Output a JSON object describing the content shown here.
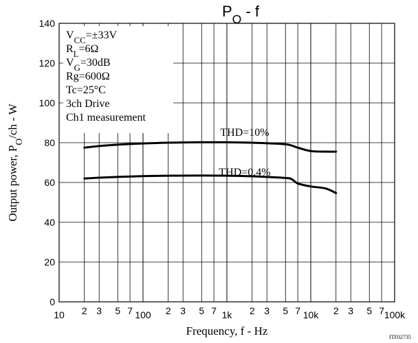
{
  "chart_data": {
    "type": "line",
    "title": "PO - f",
    "xlabel": "Frequency, f - Hz",
    "ylabel": "Output power, PO/ch - W",
    "x_scale": "log",
    "xlim": [
      10,
      100000
    ],
    "ylim": [
      0,
      140
    ],
    "y_ticks": [
      "0",
      "20",
      "40",
      "60",
      "80",
      "100",
      "120",
      "140"
    ],
    "x_tick_major_labels": [
      "10",
      "100",
      "1k",
      "10k",
      "100k"
    ],
    "x_tick_minor_labels": [
      "2",
      "3",
      "5",
      "7"
    ],
    "grid": true,
    "conditions": [
      "VCC=±33V",
      "RL=6Ω",
      "VG=30dB",
      "Rg=600Ω",
      "Tc=25°C",
      "3ch Drive",
      "Ch1 measurement"
    ],
    "series": [
      {
        "name": "THD=10%",
        "x": [
          20,
          30,
          50,
          100,
          200,
          500,
          1000,
          2000,
          5000,
          7000,
          10000,
          15000,
          20000
        ],
        "y": [
          77.5,
          78.3,
          79,
          79.6,
          80,
          80.2,
          80.2,
          80,
          79.2,
          77.5,
          75.8,
          75.5,
          75.5
        ]
      },
      {
        "name": "THD=0.4%",
        "x": [
          20,
          30,
          50,
          100,
          200,
          500,
          1000,
          2000,
          5000,
          6000,
          7000,
          10000,
          15000,
          20000
        ],
        "y": [
          62,
          62.4,
          62.8,
          63.2,
          63.4,
          63.5,
          63.4,
          63.1,
          62.3,
          61.5,
          59.5,
          58,
          57,
          54.7
        ]
      }
    ]
  },
  "footer_code": "ITF02735"
}
